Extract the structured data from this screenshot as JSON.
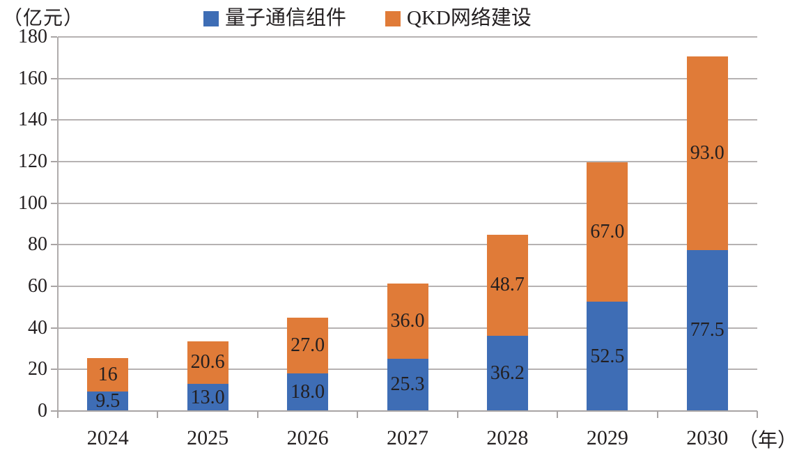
{
  "chart_data": {
    "type": "bar",
    "stacked": true,
    "title": "",
    "categories": [
      "2024",
      "2025",
      "2026",
      "2027",
      "2028",
      "2029",
      "2030"
    ],
    "series": [
      {
        "name": "量子通信组件",
        "color": "#3e6db5",
        "values": [
          9.5,
          13.0,
          18.0,
          25.3,
          36.2,
          52.5,
          77.5
        ],
        "labels": [
          "9.5",
          "13.0",
          "18.0",
          "25.3",
          "36.2",
          "52.5",
          "77.5"
        ]
      },
      {
        "name": "QKD网络建设",
        "color": "#e07b38",
        "values": [
          16,
          20.6,
          27.0,
          36.0,
          48.7,
          67.0,
          93.0
        ],
        "labels": [
          "16",
          "20.6",
          "27.0",
          "36.0",
          "48.7",
          "67.0",
          "93.0"
        ]
      }
    ],
    "y_axis": {
      "unit_label": "（亿元）",
      "min": 0,
      "max": 180,
      "step": 20,
      "ticks": [
        "0",
        "20",
        "40",
        "60",
        "80",
        "100",
        "120",
        "140",
        "160",
        "180"
      ]
    },
    "x_axis": {
      "unit_label": "（年）"
    },
    "legend_position": "top",
    "grid": true
  }
}
